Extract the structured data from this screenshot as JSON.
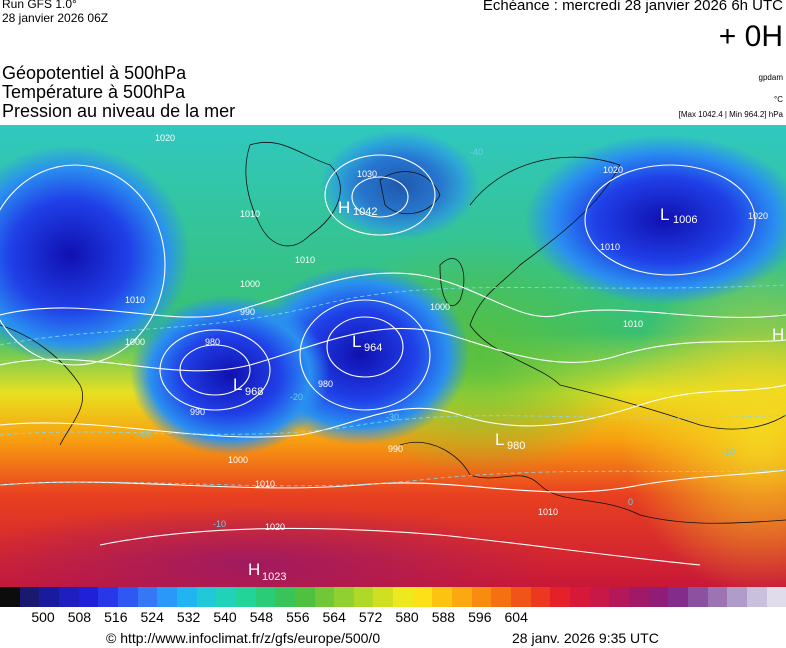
{
  "header": {
    "run_title": "Run GFS 1.0°",
    "run_date": "28 janvier 2026 06Z",
    "valid_line": "Echéance : mercredi 28 janvier 2026 6h UTC",
    "offset": "+ 0H"
  },
  "parameters": [
    "Géopotentiel à 500hPa",
    "Température à 500hPa",
    "Pression au niveau de la mer"
  ],
  "units": {
    "geopotential": "gpdam",
    "temperature": "°C",
    "pressure_range": "[Max 1042.4 | Min 964.2] hPa"
  },
  "pressure_centers": [
    {
      "type": "H",
      "value": "1042"
    },
    {
      "type": "L",
      "value": "1006"
    },
    {
      "type": "L",
      "value": "964"
    },
    {
      "type": "L",
      "value": "968"
    },
    {
      "type": "L",
      "value": "980"
    },
    {
      "type": "H",
      "value": "1023"
    },
    {
      "type": "H",
      "value": ""
    }
  ],
  "isobar_labels": [
    "1020",
    "1030",
    "1010",
    "1000",
    "990",
    "980",
    "1020",
    "1010",
    "1010",
    "1000",
    "990",
    "980",
    "1010",
    "1000",
    "990",
    "1000",
    "1010",
    "1020",
    "1010",
    "1010",
    "1020"
  ],
  "temperature_labels": [
    "-40",
    "-30",
    "-20",
    "-20",
    "-10",
    "-10",
    "0"
  ],
  "colorbar": {
    "colors": [
      "#0c0c0c",
      "#191970",
      "#1a1a9c",
      "#1f1fbf",
      "#2020d8",
      "#2838e8",
      "#2f58f2",
      "#3478f6",
      "#2a98f8",
      "#20b4f0",
      "#20c8d8",
      "#20d2b8",
      "#22d498",
      "#2acc78",
      "#38c458",
      "#50c040",
      "#70c838",
      "#90d030",
      "#b0d828",
      "#d0e020",
      "#eee820",
      "#fce018",
      "#fcc410",
      "#fca810",
      "#f88c10",
      "#f47010",
      "#f05418",
      "#ec3820",
      "#e42028",
      "#d81838",
      "#c81848",
      "#b41858",
      "#a01868",
      "#901c78",
      "#842c8c",
      "#8c50a0",
      "#9c74b4",
      "#b09cc8",
      "#c8c0dc",
      "#e0dcec"
    ],
    "ticks": [
      "500",
      "508",
      "516",
      "524",
      "532",
      "540",
      "548",
      "556",
      "564",
      "572",
      "580",
      "588",
      "596",
      "604"
    ]
  },
  "footer": {
    "credit": "© http://www.infoclimat.fr/z/gfs/europe/500/0",
    "timestamp": "28 janv. 2026  9:35 UTC"
  }
}
